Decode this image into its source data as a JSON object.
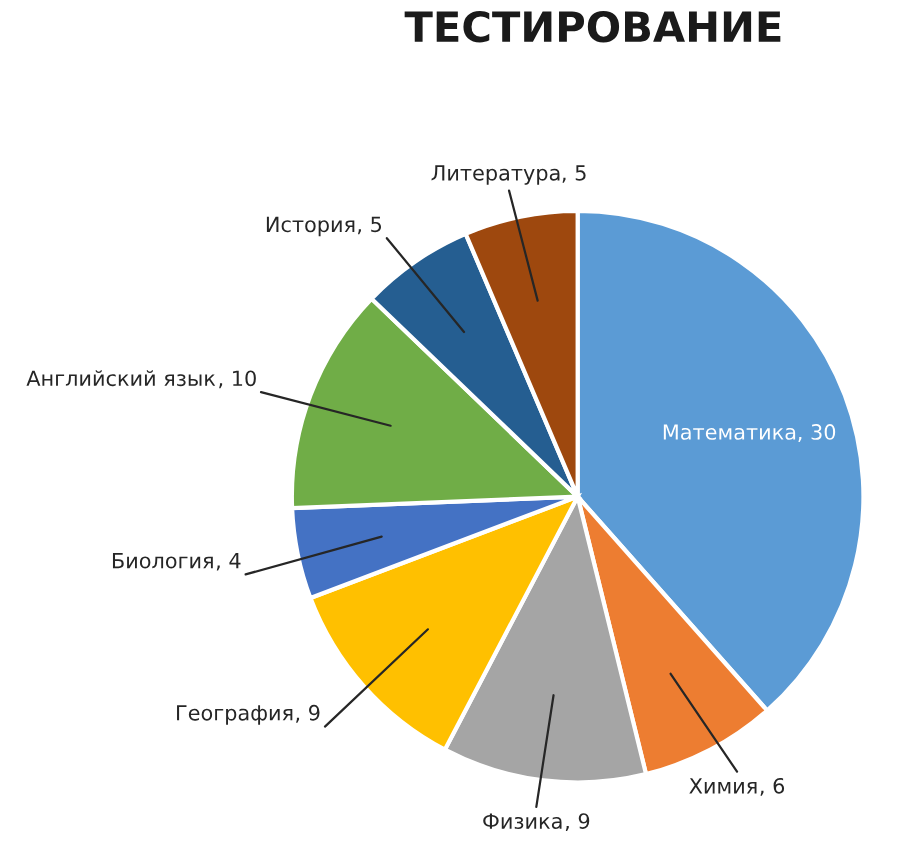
{
  "chart_data": {
    "type": "pie",
    "title": "ТЕСТИРОВАНИЕ",
    "categories": [
      "Математика",
      "Химия",
      "Физика",
      "География",
      "Биология",
      "Английский язык",
      "История",
      "Литература"
    ],
    "values": [
      30,
      6,
      9,
      9,
      4,
      10,
      5,
      5
    ],
    "colors": [
      "#5b9bd5",
      "#ed7d31",
      "#a5a5a5",
      "#ffc000",
      "#4472c4",
      "#70ad47",
      "#255e91",
      "#9e480e"
    ],
    "value_labels": [
      ", 30",
      ", 6",
      ", 9",
      ", 9",
      ", 4",
      ", 10",
      ", 5",
      ", 5"
    ],
    "legend": false
  }
}
